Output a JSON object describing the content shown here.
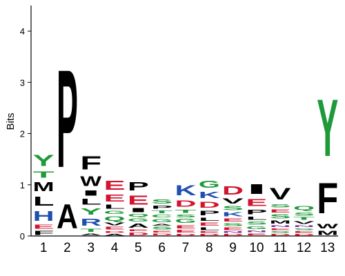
{
  "chart_data": {
    "type": "sequence-logo",
    "ylabel": "Bits",
    "xlabel": "",
    "ylim": [
      0,
      4.5
    ],
    "y_ticks": [
      0,
      1,
      2,
      3,
      4
    ],
    "positions": [
      "1",
      "2",
      "3",
      "4",
      "5",
      "6",
      "7",
      "8",
      "9",
      "10",
      "11",
      "12",
      "13"
    ],
    "colors": {
      "hydrophobic": "#000000",
      "polar": "#1f9a3a",
      "acidic": "#d2152f",
      "basic": "#1f4fb0",
      "amide": "#7a2b9a"
    },
    "letter_colors": {
      "A": "hydrophobic",
      "V": "hydrophobic",
      "L": "hydrophobic",
      "I": "hydrophobic",
      "P": "hydrophobic",
      "W": "hydrophobic",
      "F": "hydrophobic",
      "M": "hydrophobic",
      "G": "polar",
      "S": "polar",
      "T": "polar",
      "Y": "polar",
      "C": "polar",
      "Q": "polar",
      "N": "amide",
      "D": "acidic",
      "E": "acidic",
      "K": "basic",
      "R": "basic",
      "H": "basic"
    },
    "stacks": [
      {
        "position": "1",
        "letters": [
          {
            "letter": "F",
            "height": 0.12
          },
          {
            "letter": "E",
            "height": 0.12
          },
          {
            "letter": "H",
            "height": 0.3
          },
          {
            "letter": "L",
            "height": 0.28
          },
          {
            "letter": "M",
            "height": 0.28
          },
          {
            "letter": "T",
            "height": 0.2
          },
          {
            "letter": "Y",
            "height": 0.35
          }
        ]
      },
      {
        "position": "2",
        "letters": [
          {
            "letter": "A",
            "height": 0.75
          },
          {
            "letter": "P",
            "height": 3.05
          }
        ]
      },
      {
        "position": "3",
        "letters": [
          {
            "letter": "A",
            "height": 0.06
          },
          {
            "letter": "T",
            "height": 0.1
          },
          {
            "letter": "R",
            "height": 0.22
          },
          {
            "letter": "Y",
            "height": 0.2
          },
          {
            "letter": "L",
            "height": 0.18
          },
          {
            "letter": "I",
            "height": 0.16
          },
          {
            "letter": "W",
            "height": 0.3
          },
          {
            "letter": "F",
            "height": 0.42
          }
        ]
      },
      {
        "position": "4",
        "letters": [
          {
            "letter": "A",
            "height": 0.05
          },
          {
            "letter": "D",
            "height": 0.06
          },
          {
            "letter": "E",
            "height": 0.08
          },
          {
            "letter": "V",
            "height": 0.08
          },
          {
            "letter": "Q",
            "height": 0.14
          },
          {
            "letter": "G",
            "height": 0.1
          },
          {
            "letter": "L",
            "height": 0.12
          },
          {
            "letter": "E",
            "height": 0.22
          },
          {
            "letter": "E",
            "height": 0.28
          }
        ]
      },
      {
        "position": "5",
        "letters": [
          {
            "letter": "D",
            "height": 0.08
          },
          {
            "letter": "E",
            "height": 0.06
          },
          {
            "letter": "A",
            "height": 0.12
          },
          {
            "letter": "G",
            "height": 0.1
          },
          {
            "letter": "Q",
            "height": 0.08
          },
          {
            "letter": "I",
            "height": 0.12
          },
          {
            "letter": "E",
            "height": 0.28
          },
          {
            "letter": "P",
            "height": 0.26
          }
        ]
      },
      {
        "position": "6",
        "letters": [
          {
            "letter": "D",
            "height": 0.06
          },
          {
            "letter": "E",
            "height": 0.05
          },
          {
            "letter": "S",
            "height": 0.08
          },
          {
            "letter": "A",
            "height": 0.06
          },
          {
            "letter": "G",
            "height": 0.1
          },
          {
            "letter": "C",
            "height": 0.08
          },
          {
            "letter": "T",
            "height": 0.08
          },
          {
            "letter": "P",
            "height": 0.1
          },
          {
            "letter": "S",
            "height": 0.12
          }
        ]
      },
      {
        "position": "7",
        "letters": [
          {
            "letter": "D",
            "height": 0.05
          },
          {
            "letter": "E",
            "height": 0.08
          },
          {
            "letter": "E",
            "height": 0.1
          },
          {
            "letter": "G",
            "height": 0.12
          },
          {
            "letter": "S",
            "height": 0.08
          },
          {
            "letter": "T",
            "height": 0.1
          },
          {
            "letter": "D",
            "height": 0.2
          },
          {
            "letter": "K",
            "height": 0.32
          }
        ]
      },
      {
        "position": "8",
        "letters": [
          {
            "letter": "D",
            "height": 0.05
          },
          {
            "letter": "E",
            "height": 0.05
          },
          {
            "letter": "L",
            "height": 0.08
          },
          {
            "letter": "E",
            "height": 0.1
          },
          {
            "letter": "L",
            "height": 0.1
          },
          {
            "letter": "P",
            "height": 0.14
          },
          {
            "letter": "D",
            "height": 0.18
          },
          {
            "letter": "K",
            "height": 0.2
          },
          {
            "letter": "G",
            "height": 0.22
          }
        ]
      },
      {
        "position": "9",
        "letters": [
          {
            "letter": "D",
            "height": 0.05
          },
          {
            "letter": "N",
            "height": 0.05
          },
          {
            "letter": "E",
            "height": 0.08
          },
          {
            "letter": "S",
            "height": 0.08
          },
          {
            "letter": "E",
            "height": 0.1
          },
          {
            "letter": "K",
            "height": 0.12
          },
          {
            "letter": "S",
            "height": 0.12
          },
          {
            "letter": "V",
            "height": 0.16
          },
          {
            "letter": "D",
            "height": 0.26
          }
        ]
      },
      {
        "position": "10",
        "letters": [
          {
            "letter": "E",
            "height": 0.06
          },
          {
            "letter": "N",
            "height": 0.06
          },
          {
            "letter": "G",
            "height": 0.08
          },
          {
            "letter": "S",
            "height": 0.1
          },
          {
            "letter": "L",
            "height": 0.1
          },
          {
            "letter": "P",
            "height": 0.14
          },
          {
            "letter": "E",
            "height": 0.22
          },
          {
            "letter": "I",
            "height": 0.3
          }
        ]
      },
      {
        "position": "11",
        "letters": [
          {
            "letter": "D",
            "height": 0.05
          },
          {
            "letter": "S",
            "height": 0.05
          },
          {
            "letter": "E",
            "height": 0.06
          },
          {
            "letter": "N",
            "height": 0.06
          },
          {
            "letter": "M",
            "height": 0.1
          },
          {
            "letter": "S",
            "height": 0.12
          },
          {
            "letter": "E",
            "height": 0.1
          },
          {
            "letter": "S",
            "height": 0.1
          },
          {
            "letter": "V",
            "height": 0.36
          }
        ]
      },
      {
        "position": "12",
        "letters": [
          {
            "letter": "D",
            "height": 0.05
          },
          {
            "letter": "E",
            "height": 0.05
          },
          {
            "letter": "S",
            "height": 0.06
          },
          {
            "letter": "N",
            "height": 0.06
          },
          {
            "letter": "V",
            "height": 0.08
          },
          {
            "letter": "T",
            "height": 0.08
          },
          {
            "letter": "S",
            "height": 0.1
          },
          {
            "letter": "Q",
            "height": 0.12
          }
        ]
      },
      {
        "position": "13",
        "letters": [
          {
            "letter": "M",
            "height": 0.12
          },
          {
            "letter": "W",
            "height": 0.14
          },
          {
            "letter": "F",
            "height": 0.95
          },
          {
            "letter": "Y",
            "height": 1.78
          }
        ]
      }
    ]
  }
}
